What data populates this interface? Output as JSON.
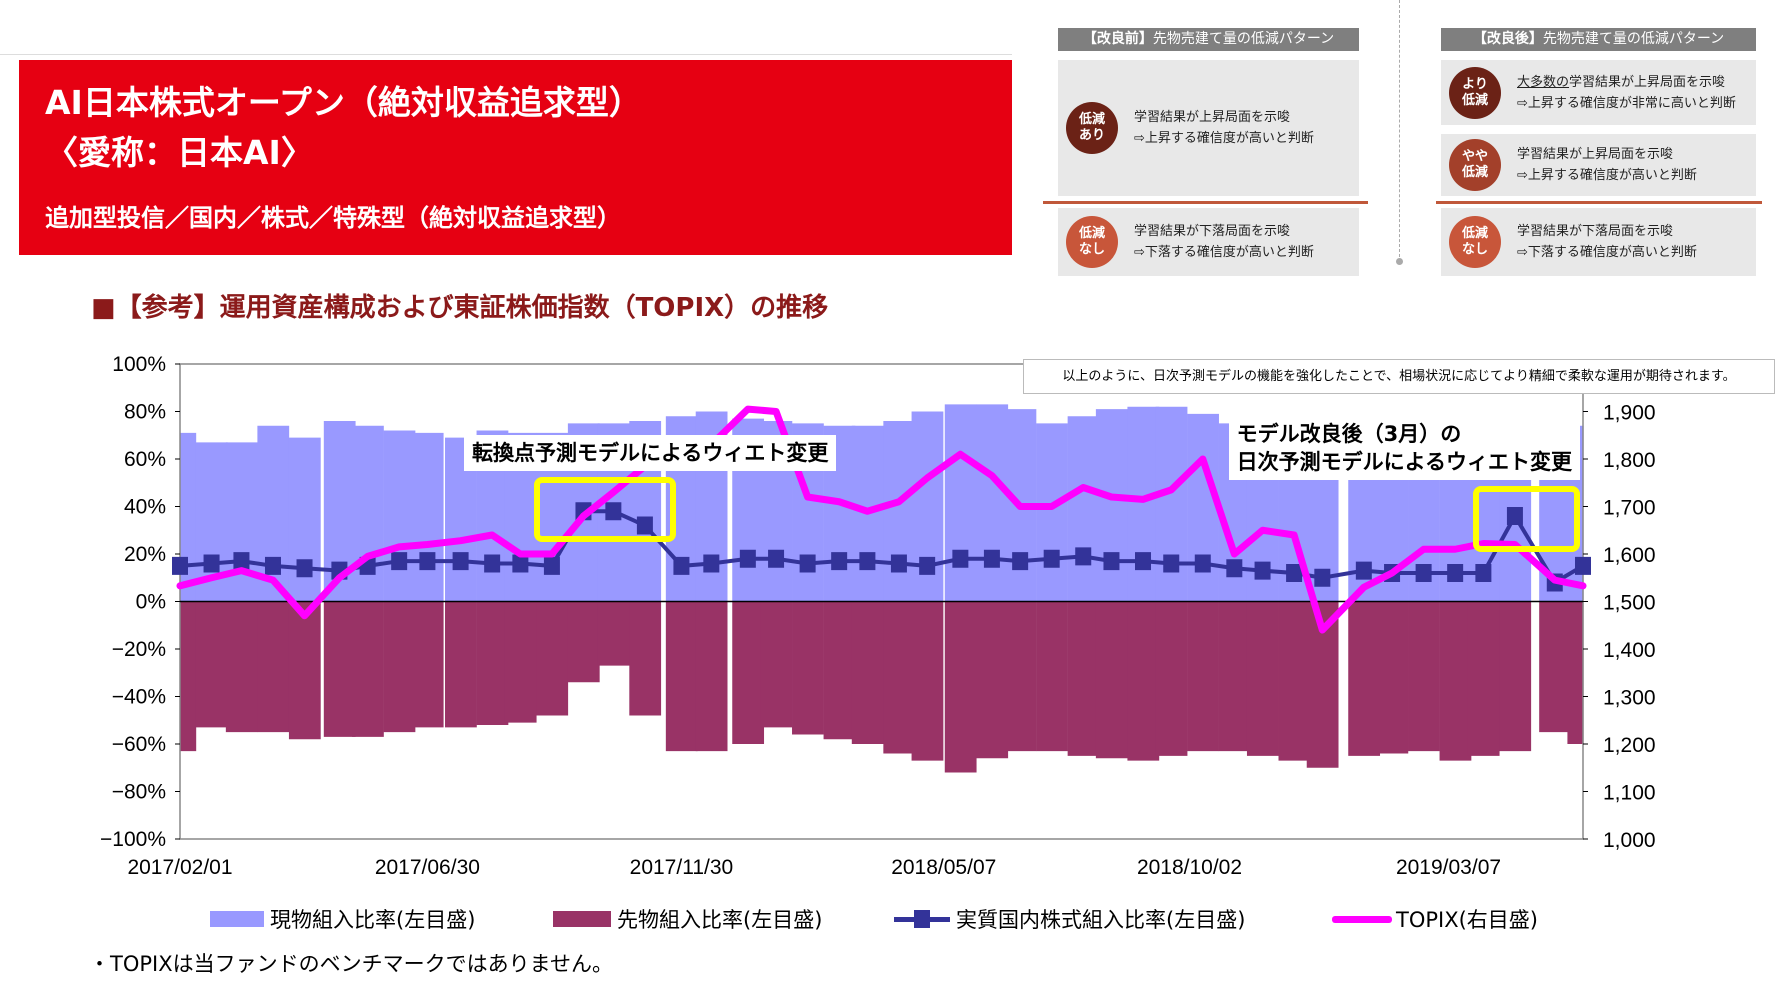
{
  "banner": {
    "title_line1": "AI日本株式オープン（絶対収益追求型）",
    "title_line2": "〈愛称：日本AI〉",
    "subtitle": "追加型投信／国内／株式／特殊型（絶対収益追求型）"
  },
  "heading": "■【参考】運用資産構成および東証株価指数（TOPIX）の推移",
  "panels": [
    {
      "header_bold": "【改良前】",
      "header_rest": "先物売建て量の低減パターン",
      "rows": [
        {
          "badge": [
            "低減",
            "あり"
          ],
          "color": "#6b2216",
          "line1": "学習結果が上昇局面を示唆",
          "line2": "⇨上昇する確信度が高いと判断"
        },
        {
          "badge": [
            "低減",
            "なし"
          ],
          "color": "#c8563a",
          "line1": "学習結果が下落局面を示唆",
          "line2": "⇨下落する確信度が高いと判断"
        }
      ]
    },
    {
      "header_bold": "【改良後】",
      "header_rest": "先物売建て量の低減パターン",
      "rows": [
        {
          "badge": [
            "より",
            "低減"
          ],
          "color": "#6b2216",
          "line1_u": "大多数の",
          "line1": "学習結果が上昇局面を示唆",
          "line2": "⇨上昇する確信度が非常に高いと判断"
        },
        {
          "badge": [
            "やや",
            "低減"
          ],
          "color": "#a3402a",
          "line1": "学習結果が上昇局面を示唆",
          "line2": "⇨上昇する確信度が高いと判断"
        },
        {
          "badge": [
            "低減",
            "なし"
          ],
          "color": "#c8563a",
          "line1": "学習結果が下落局面を示唆",
          "line2": "⇨下落する確信度が高いと判断"
        }
      ]
    }
  ],
  "note": "以上のように、日次予測モデルの機能を強化したことで、相場状況に応じてより精細で柔軟な運用が期待されます。",
  "annotations": {
    "a1": "転換点予測モデルによるウィエト変更",
    "a2_line1": "モデル改良後（3月）の",
    "a2_line2": "日次予測モデルによるウィエト変更"
  },
  "footnote": "・TOPIXは当ファンドのベンチマークではありません。",
  "chart_data": {
    "type": "bar+line",
    "left_axis": {
      "range": [
        -100,
        100
      ],
      "ticks": [
        "100%",
        "80%",
        "60%",
        "40%",
        "20%",
        "0%",
        "−20%",
        "−40%",
        "−60%",
        "−80%",
        "−100%"
      ]
    },
    "right_axis": {
      "range": [
        1000,
        2000
      ],
      "ticks": [
        "1,000",
        "1,100",
        "1,200",
        "1,300",
        "1,400",
        "1,500",
        "1,600",
        "1,700",
        "1,800",
        "1,900"
      ]
    },
    "x_ticks": [
      "2017/02/01",
      "2017/06/30",
      "2017/11/30",
      "2018/05/07",
      "2018/10/02",
      "2019/03/07"
    ],
    "x_range": [
      "2017/02/01",
      "2019/05/27"
    ],
    "grid": false,
    "legend_position": "bottom",
    "dates": [
      "2017/02/01",
      "2017/02/20",
      "2017/03/10",
      "2017/03/29",
      "2017/04/17",
      "2017/05/08",
      "2017/05/25",
      "2017/06/13",
      "2017/06/30",
      "2017/07/20",
      "2017/08/08",
      "2017/08/25",
      "2017/09/13",
      "2017/10/02",
      "2017/10/20",
      "2017/11/08",
      "2017/11/30",
      "2017/12/18",
      "2018/01/09",
      "2018/01/26",
      "2018/02/14",
      "2018/03/05",
      "2018/03/22",
      "2018/04/10",
      "2018/04/27",
      "2018/05/17",
      "2018/06/05",
      "2018/06/22",
      "2018/07/11",
      "2018/07/30",
      "2018/08/16",
      "2018/09/04",
      "2018/09/21",
      "2018/10/10",
      "2018/10/29",
      "2018/11/15",
      "2018/12/04",
      "2018/12/21",
      "2019/01/15",
      "2019/02/01",
      "2019/02/20",
      "2019/03/11",
      "2019/03/28",
      "2019/04/16",
      "2019/05/10",
      "2019/05/27"
    ],
    "series": [
      {
        "name": "現物組入比率(左目盛)",
        "type": "bar",
        "axis": "left",
        "color": "#9999ff",
        "values": [
          71,
          67,
          67,
          74,
          69,
          76,
          74,
          72,
          71,
          69,
          72,
          71,
          71,
          75,
          75,
          76,
          78,
          80,
          77,
          76,
          75,
          74,
          74,
          76,
          80,
          83,
          83,
          81,
          75,
          78,
          81,
          82,
          82,
          79,
          75,
          74,
          74,
          74,
          75,
          75,
          76,
          76,
          75,
          75,
          74,
          74
        ]
      },
      {
        "name": "先物組入比率(左目盛)",
        "type": "bar",
        "axis": "left",
        "color": "#993366",
        "values": [
          -63,
          -53,
          -55,
          -55,
          -58,
          -57,
          -57,
          -55,
          -53,
          -53,
          -52,
          -51,
          -48,
          -34,
          -27,
          -48,
          -63,
          -63,
          -60,
          -53,
          -56,
          -58,
          -60,
          -64,
          -67,
          -72,
          -66,
          -63,
          -63,
          -65,
          -66,
          -67,
          -65,
          -63,
          -63,
          -65,
          -67,
          -70,
          -65,
          -64,
          -63,
          -67,
          -65,
          -63,
          -55,
          -60
        ]
      },
      {
        "name": "実質国内株式組入比率(左目盛)",
        "type": "line-marker",
        "axis": "left",
        "color": "#333399",
        "values": [
          15,
          16,
          17,
          15,
          14,
          13,
          15,
          17,
          17,
          17,
          16,
          16,
          15,
          38,
          38,
          32,
          15,
          16,
          18,
          18,
          16,
          17,
          17,
          16,
          15,
          18,
          18,
          17,
          18,
          19,
          17,
          17,
          16,
          16,
          14,
          13,
          12,
          10,
          13,
          12,
          12,
          12,
          12,
          36,
          8,
          15
        ]
      },
      {
        "name": "TOPIX(右目盛)",
        "type": "line",
        "axis": "right",
        "color": "#ff00ff",
        "values": [
          1533,
          1550,
          1565,
          1545,
          1470,
          1550,
          1595,
          1615,
          1620,
          1628,
          1640,
          1600,
          1600,
          1680,
          1730,
          1785,
          1797,
          1830,
          1905,
          1900,
          1720,
          1710,
          1690,
          1710,
          1760,
          1810,
          1765,
          1700,
          1700,
          1740,
          1720,
          1715,
          1735,
          1800,
          1600,
          1650,
          1640,
          1440,
          1530,
          1560,
          1610,
          1610,
          1622,
          1620,
          1545,
          1533
        ]
      }
    ]
  }
}
